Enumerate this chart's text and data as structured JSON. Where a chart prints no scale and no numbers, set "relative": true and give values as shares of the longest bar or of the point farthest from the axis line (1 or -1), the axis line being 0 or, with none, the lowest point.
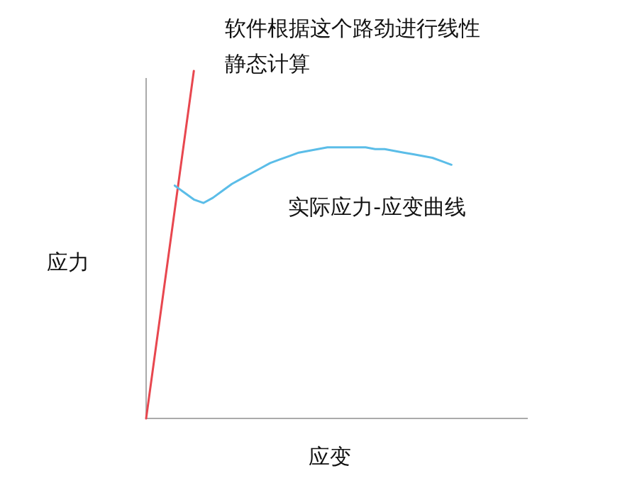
{
  "chart_data": {
    "type": "line",
    "relative": true,
    "xlabel": "应变",
    "ylabel": "应力",
    "categories": [
      null,
      null,
      null,
      null,
      null,
      null,
      null,
      null,
      null,
      null,
      null,
      null,
      null,
      null,
      null,
      null,
      null,
      null,
      null,
      null,
      null,
      null,
      null,
      null,
      null,
      null,
      null,
      null,
      null,
      null,
      null,
      null,
      null,
      null,
      null,
      null,
      null,
      null,
      null,
      null,
      null
    ],
    "series": [
      {
        "name": "软件根据这个路劲进行线性静态计算",
        "color": "#e8474f",
        "values": [
          0,
          0.2,
          0.4,
          0.6,
          0.8,
          1,
          null,
          null,
          null,
          null,
          null,
          null,
          null,
          null,
          null,
          null,
          null,
          null,
          null,
          null,
          null,
          null,
          null,
          null,
          null,
          null,
          null,
          null,
          null,
          null,
          null,
          null,
          null,
          null,
          null,
          null,
          null,
          null,
          null,
          null,
          null
        ]
      },
      {
        "name": "实际应力-应变曲线",
        "color": "#5bbde8",
        "values": [
          null,
          null,
          null,
          0.67,
          0.65,
          0.63,
          0.62,
          0.635,
          0.655,
          0.675,
          0.69,
          0.705,
          0.72,
          0.735,
          0.745,
          0.755,
          0.765,
          0.77,
          0.775,
          0.78,
          0.78,
          0.78,
          0.78,
          0.78,
          0.775,
          0.775,
          0.77,
          0.765,
          0.76,
          0.755,
          0.75,
          0.74,
          0.73,
          null,
          null,
          null,
          null,
          null,
          null,
          null,
          null
        ]
      }
    ]
  }
}
